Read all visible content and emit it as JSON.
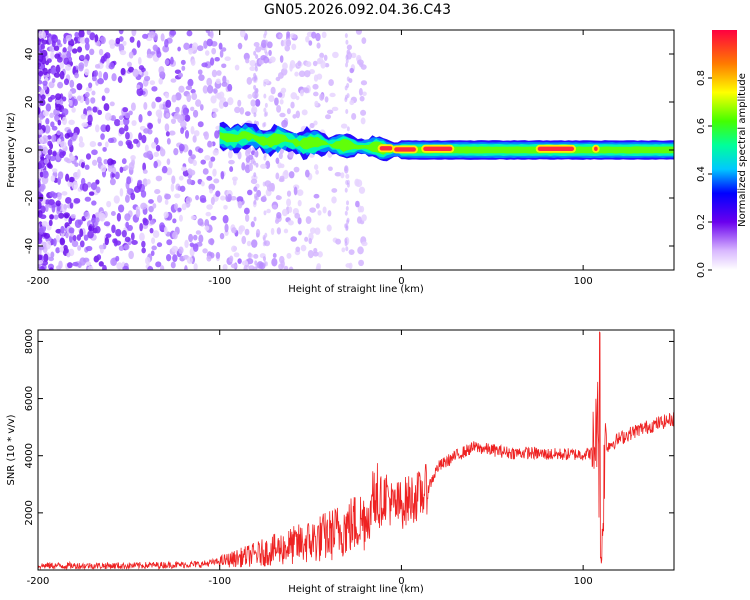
{
  "title": "GN05.2026.092.04.36.C43",
  "chart_data": [
    {
      "type": "heatmap",
      "title": "GN05.2026.092.04.36.C43",
      "xlabel": "Height of straight line (km)",
      "ylabel": "Frequency (Hz)",
      "xlim": [
        -200,
        150
      ],
      "ylim": [
        -50,
        50
      ],
      "xticks": [
        -200,
        -100,
        0,
        100
      ],
      "yticks": [
        -40,
        -20,
        0,
        20,
        40
      ],
      "colorbar": {
        "label": "Normalized spectral amplitude",
        "range": [
          0.0,
          1.0
        ],
        "ticks": [
          0.0,
          0.2,
          0.4,
          0.6,
          0.8
        ]
      },
      "description_features": {
        "noise_region_x": [
          -200,
          -45
        ],
        "signal_band_center_hz": 0,
        "signal_band_halfwidth_hz": 4,
        "hot_segments_x": [
          [
            -12,
            -5
          ],
          [
            -4,
            8
          ],
          [
            12,
            28
          ],
          [
            75,
            95
          ],
          [
            106,
            108
          ]
        ]
      }
    },
    {
      "type": "line",
      "xlabel": "Height of straight line (km)",
      "ylabel": "SNR (10 * v/v)",
      "xlim": [
        -200,
        150
      ],
      "ylim": [
        0,
        8400
      ],
      "xticks": [
        -200,
        -100,
        0,
        100
      ],
      "yticks": [
        2000,
        4000,
        6000,
        8000
      ],
      "series": [
        {
          "name": "SNR",
          "color": "#ee2222",
          "x": [
            -200,
            -150,
            -110,
            -95,
            -80,
            -70,
            -60,
            -50,
            -40,
            -30,
            -20,
            -15,
            -8,
            -5,
            0,
            5,
            10,
            15,
            20,
            30,
            40,
            50,
            60,
            70,
            80,
            90,
            100,
            105,
            108,
            110,
            112,
            115,
            120,
            130,
            140,
            150
          ],
          "y": [
            150,
            150,
            200,
            350,
            550,
            700,
            850,
            1000,
            1200,
            1500,
            1800,
            2100,
            2700,
            2200,
            2300,
            2500,
            2600,
            2900,
            3600,
            4000,
            4300,
            4200,
            4100,
            4100,
            4050,
            4050,
            4050,
            4100,
            5200,
            300,
            4300,
            4400,
            4600,
            4900,
            5100,
            5300
          ]
        }
      ]
    }
  ]
}
